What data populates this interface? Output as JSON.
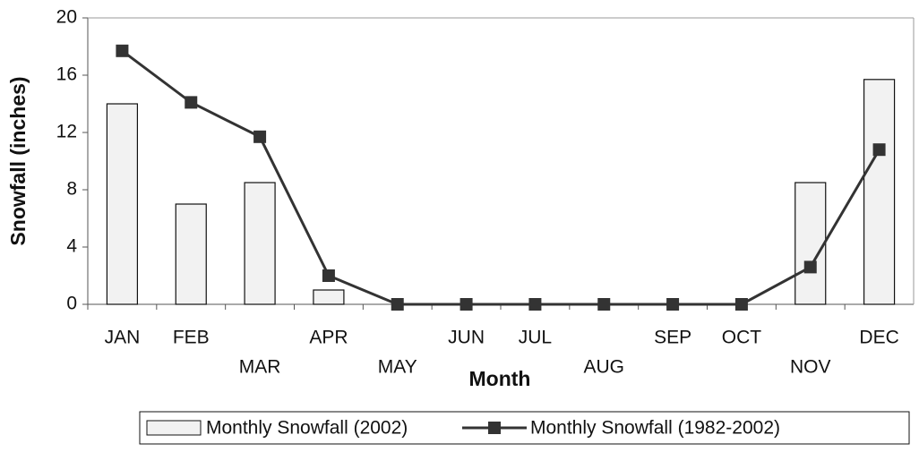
{
  "chart_data": {
    "type": "bar_line",
    "x_label": "Month",
    "y_label": "Snowfall (inches)",
    "categories": [
      "JAN",
      "FEB",
      "MAR",
      "APR",
      "MAY",
      "JUN",
      "JUL",
      "AUG",
      "SEP",
      "OCT",
      "NOV",
      "DEC"
    ],
    "series": [
      {
        "name": "Monthly Snowfall (2002)",
        "type": "bar",
        "color": "#f2f2f2",
        "values": [
          14,
          7,
          8.5,
          1,
          0,
          0,
          0,
          0,
          0,
          0,
          8.5,
          15.7
        ]
      },
      {
        "name": "Monthly Snowfall (1982-2002)",
        "type": "line",
        "color": "#333333",
        "values": [
          17.7,
          14.1,
          11.7,
          2.0,
          0,
          0,
          0,
          0,
          0,
          0,
          2.6,
          10.8
        ]
      }
    ],
    "ylim": [
      0,
      20
    ],
    "yticks": [
      0,
      4,
      8,
      12,
      16,
      20
    ],
    "grid": false,
    "legend": "bottom"
  }
}
